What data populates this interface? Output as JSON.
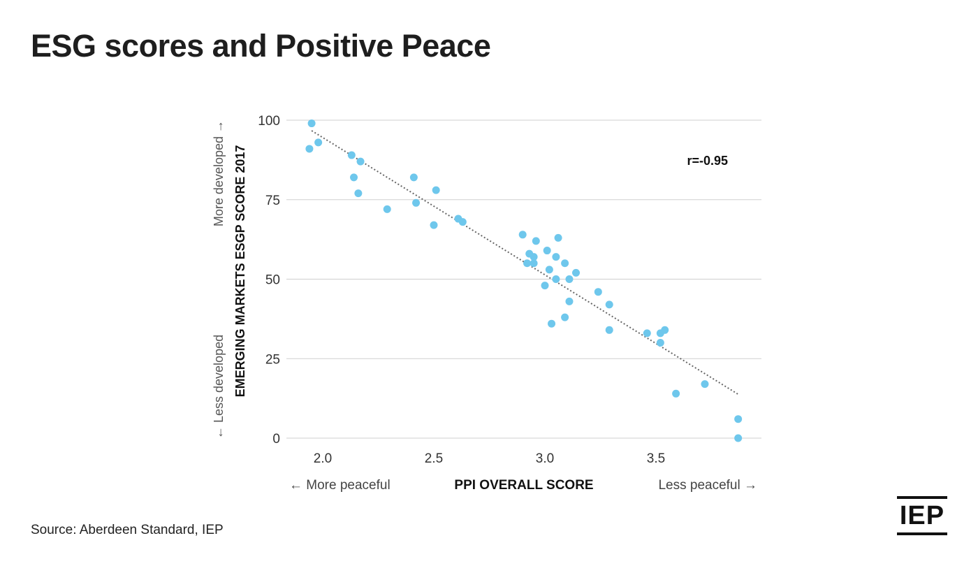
{
  "title": "ESG scores and Positive Peace",
  "source": "Source: Aberdeen Standard, IEP",
  "logo_text": "IEP",
  "colors": {
    "point": "#6EC7EC",
    "trend": "#666666",
    "grid": "#cfcfcf"
  },
  "chart_data": {
    "type": "scatter",
    "title": "ESG scores and Positive Peace",
    "xlabel": "PPI OVERALL SCORE",
    "ylabel": "EMERGING MARKETS ESGP SCORE 2017",
    "x_direction_labels": {
      "left": "← More peaceful",
      "right": "Less peaceful →"
    },
    "y_direction_labels": {
      "bottom": "← Less developed",
      "top": "More developed →"
    },
    "xlim": [
      1.85,
      3.99
    ],
    "ylim": [
      0,
      100
    ],
    "xticks": [
      2.0,
      2.5,
      3.0,
      3.5
    ],
    "xtick_labels": [
      "2.0",
      "2.5",
      "3.0",
      "3.5"
    ],
    "yticks": [
      0,
      25,
      50,
      75,
      100
    ],
    "ytick_labels": [
      "0",
      "25",
      "50",
      "75",
      "100"
    ],
    "grid": "horizontal",
    "annotation": "r=-0.95",
    "trendline": {
      "x": [
        1.95,
        3.87
      ],
      "y": [
        96.7,
        13.8
      ],
      "style": "dotted"
    },
    "points": [
      {
        "x": 1.95,
        "y": 99
      },
      {
        "x": 1.94,
        "y": 91
      },
      {
        "x": 1.98,
        "y": 93
      },
      {
        "x": 2.13,
        "y": 89
      },
      {
        "x": 2.17,
        "y": 87
      },
      {
        "x": 2.14,
        "y": 82
      },
      {
        "x": 2.16,
        "y": 77
      },
      {
        "x": 2.29,
        "y": 72
      },
      {
        "x": 2.41,
        "y": 82
      },
      {
        "x": 2.42,
        "y": 74
      },
      {
        "x": 2.51,
        "y": 78
      },
      {
        "x": 2.5,
        "y": 67
      },
      {
        "x": 2.61,
        "y": 69
      },
      {
        "x": 2.63,
        "y": 68
      },
      {
        "x": 2.9,
        "y": 64
      },
      {
        "x": 2.96,
        "y": 62
      },
      {
        "x": 3.06,
        "y": 63
      },
      {
        "x": 2.93,
        "y": 58
      },
      {
        "x": 2.95,
        "y": 57
      },
      {
        "x": 3.01,
        "y": 59
      },
      {
        "x": 2.92,
        "y": 55
      },
      {
        "x": 2.95,
        "y": 55
      },
      {
        "x": 3.05,
        "y": 57
      },
      {
        "x": 3.09,
        "y": 55
      },
      {
        "x": 3.02,
        "y": 53
      },
      {
        "x": 3.14,
        "y": 52
      },
      {
        "x": 3.05,
        "y": 50
      },
      {
        "x": 3.11,
        "y": 50
      },
      {
        "x": 3.0,
        "y": 48
      },
      {
        "x": 3.11,
        "y": 43
      },
      {
        "x": 3.09,
        "y": 38
      },
      {
        "x": 3.03,
        "y": 36
      },
      {
        "x": 3.24,
        "y": 46
      },
      {
        "x": 3.29,
        "y": 42
      },
      {
        "x": 3.29,
        "y": 34
      },
      {
        "x": 3.46,
        "y": 33
      },
      {
        "x": 3.52,
        "y": 33
      },
      {
        "x": 3.54,
        "y": 34
      },
      {
        "x": 3.52,
        "y": 30
      },
      {
        "x": 3.59,
        "y": 14
      },
      {
        "x": 3.72,
        "y": 17
      },
      {
        "x": 3.87,
        "y": 6
      },
      {
        "x": 3.87,
        "y": 0
      }
    ]
  }
}
